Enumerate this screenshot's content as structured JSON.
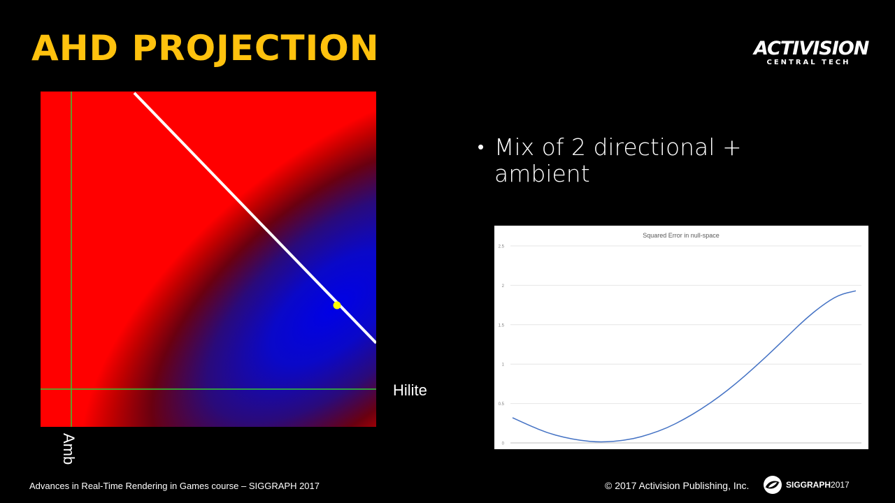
{
  "slide": {
    "title": "AHD PROJECTION",
    "title_color": "#FFC20E",
    "logo": {
      "line1": "ACTIVISION",
      "line2": "CENTRAL TECH"
    },
    "bullet": "Mix of 2 directional + ambient",
    "figure": {
      "hilite_label": "Hilite",
      "amb_label": "Amb"
    },
    "footer": {
      "left": "Advances in Real-Time Rendering in Games course – SIGGRAPH 2017",
      "right": "© 2017 Activision Publishing, Inc.",
      "siggraph": "SIGGRAPH",
      "siggraph_year": "2017"
    }
  },
  "chart_data": {
    "type": "line",
    "title": "Squared Error in null-space",
    "xlabel": "",
    "ylabel": "",
    "ylim": [
      0,
      2.5
    ],
    "y_ticks": [
      "0",
      "0.5",
      "1",
      "1.5",
      "2",
      "2.5"
    ],
    "x": [
      0,
      1,
      2,
      3,
      4,
      5,
      6,
      7,
      8,
      9,
      10,
      11,
      12,
      13,
      14,
      15,
      16,
      17,
      18,
      19,
      20
    ],
    "series": [
      {
        "color": "#4472C4",
        "values": [
          0.32,
          0.22,
          0.13,
          0.07,
          0.03,
          0.01,
          0.02,
          0.05,
          0.11,
          0.19,
          0.3,
          0.43,
          0.58,
          0.75,
          0.94,
          1.14,
          1.35,
          1.56,
          1.74,
          1.88,
          1.93
        ]
      }
    ],
    "grid": true
  }
}
